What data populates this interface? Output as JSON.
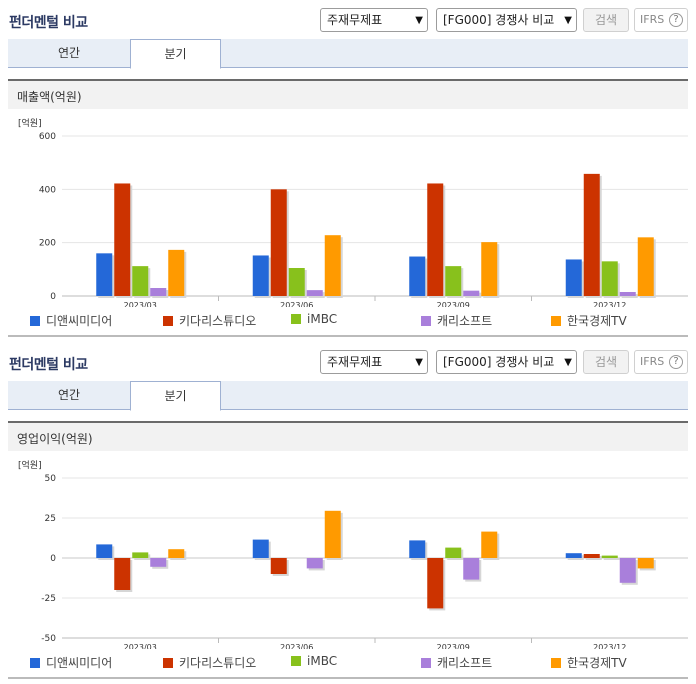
{
  "panels": [
    {
      "title": "펀더멘털 비교",
      "select_statement": "주재무제표",
      "select_peer": "[FG000] 경쟁사 비교",
      "search_button": "검색",
      "ifrs_label": "IFRS",
      "help_label": "?",
      "tabs": [
        "연간",
        "분기"
      ],
      "section_title": "매출액(억원)",
      "chart_data": {
        "type": "bar",
        "unit_label": "[억원]",
        "categories": [
          "2023/03",
          "2023/06",
          "2023/09",
          "2023/12"
        ],
        "ylim": [
          0,
          600
        ],
        "yticks": [
          0,
          200,
          400,
          600
        ],
        "series": [
          {
            "name": "디앤씨미디어",
            "color": "#2468d8",
            "values": [
              160,
              152,
              148,
              137
            ]
          },
          {
            "name": "키다리스튜디오",
            "color": "#cc3300",
            "values": [
              422,
              400,
              422,
              458
            ]
          },
          {
            "name": "iMBC",
            "color": "#88c11c",
            "values": [
              112,
              105,
              112,
              130
            ]
          },
          {
            "name": "캐리소프트",
            "color": "#a97fdb",
            "values": [
              30,
              22,
              20,
              15
            ]
          },
          {
            "name": "한국경제TV",
            "color": "#ff9a00",
            "values": [
              173,
              228,
              202,
              220
            ]
          }
        ]
      }
    },
    {
      "title": "펀더멘털 비교",
      "select_statement": "주재무제표",
      "select_peer": "[FG000] 경쟁사 비교",
      "search_button": "검색",
      "ifrs_label": "IFRS",
      "help_label": "?",
      "tabs": [
        "연간",
        "분기"
      ],
      "section_title": "영업이익(억원)",
      "chart_data": {
        "type": "bar",
        "unit_label": "[억원]",
        "categories": [
          "2023/03",
          "2023/06",
          "2023/09",
          "2023/12"
        ],
        "ylim": [
          -50,
          50
        ],
        "yticks": [
          -50,
          -25,
          0,
          25,
          50
        ],
        "series": [
          {
            "name": "디앤씨미디어",
            "color": "#2468d8",
            "values": [
              8.5,
              11.5,
              11,
              3
            ]
          },
          {
            "name": "키다리스튜디오",
            "color": "#cc3300",
            "values": [
              -20,
              -10,
              -31.5,
              2.5
            ]
          },
          {
            "name": "iMBC",
            "color": "#88c11c",
            "values": [
              3.5,
              0,
              6.5,
              1.5
            ]
          },
          {
            "name": "캐리소프트",
            "color": "#a97fdb",
            "values": [
              -5.5,
              -6.5,
              -13.5,
              -15.5
            ]
          },
          {
            "name": "한국경제TV",
            "color": "#ff9a00",
            "values": [
              5.5,
              29.5,
              16.5,
              -6.5
            ]
          }
        ]
      }
    }
  ]
}
